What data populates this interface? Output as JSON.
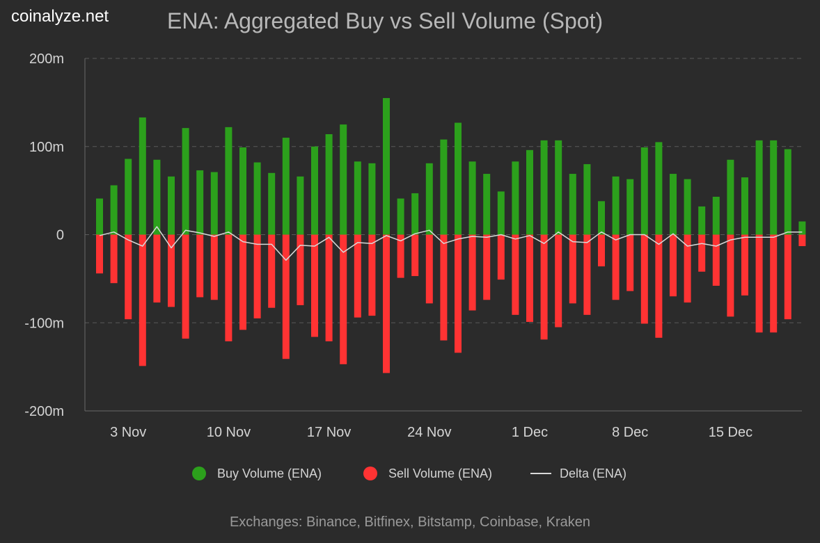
{
  "brand": "coinalyze.net",
  "title": "ENA: Aggregated Buy vs Sell Volume (Spot)",
  "footer": "Exchanges: Binance, Bitfinex, Bitstamp, Coinbase, Kraken",
  "colors": {
    "background": "#2b2b2b",
    "buy": "#2ca01c",
    "sell": "#ff3333",
    "delta": "#d9d9d9",
    "grid": "#5a5a5a",
    "axis_text": "#d4d4d4"
  },
  "legend": {
    "buy_label": "Buy Volume (ENA)",
    "sell_label": "Sell Volume (ENA)",
    "delta_label": "Delta (ENA)"
  },
  "chart_data": {
    "type": "bar",
    "title": "ENA: Aggregated Buy vs Sell Volume (Spot)",
    "unit": "m",
    "ylim": [
      -200,
      200
    ],
    "yticks": [
      {
        "value": 200,
        "label": "200m"
      },
      {
        "value": 100,
        "label": "100m"
      },
      {
        "value": 0,
        "label": "0"
      },
      {
        "value": -100,
        "label": "-100m"
      },
      {
        "value": -200,
        "label": "-200m"
      }
    ],
    "grid": true,
    "legend_position": "bottom",
    "x_ticks": [
      {
        "day_index": 2,
        "label": "3 Nov"
      },
      {
        "day_index": 9,
        "label": "10 Nov"
      },
      {
        "day_index": 16,
        "label": "17 Nov"
      },
      {
        "day_index": 23,
        "label": "24 Nov"
      },
      {
        "day_index": 30,
        "label": "1 Dec"
      },
      {
        "day_index": 37,
        "label": "8 Dec"
      },
      {
        "day_index": 44,
        "label": "15 Dec"
      }
    ],
    "series": [
      {
        "name": "Buy Volume (ENA)",
        "values": [
          41,
          56,
          86,
          133,
          85,
          66,
          121,
          73,
          71,
          122,
          99,
          82,
          70,
          110,
          66,
          100,
          114,
          125,
          83,
          81,
          155,
          41,
          47,
          81,
          108,
          127,
          83,
          69,
          49,
          83,
          96,
          107,
          107,
          69,
          80,
          38,
          66,
          63,
          99,
          105,
          69,
          63,
          32,
          43,
          85,
          65,
          107,
          107,
          97,
          15
        ]
      },
      {
        "name": "Sell Volume (ENA)",
        "values": [
          -44,
          -55,
          -96,
          -149,
          -77,
          -82,
          -118,
          -71,
          -74,
          -121,
          -108,
          -95,
          -83,
          -141,
          -80,
          -116,
          -121,
          -147,
          -94,
          -92,
          -157,
          -49,
          -47,
          -78,
          -120,
          -134,
          -86,
          -74,
          -51,
          -91,
          -99,
          -119,
          -105,
          -78,
          -91,
          -36,
          -74,
          -64,
          -101,
          -117,
          -70,
          -77,
          -42,
          -58,
          -93,
          -69,
          -111,
          -111,
          -96,
          -13
        ]
      },
      {
        "name": "Delta (ENA)",
        "values": [
          -1,
          3,
          -6,
          -13,
          9,
          -15,
          5,
          2,
          -2,
          3,
          -8,
          -11,
          -11,
          -29,
          -12,
          -13,
          -3,
          -20,
          -9,
          -10,
          -1,
          -7,
          1,
          5,
          -10,
          -5,
          -2,
          -3,
          0,
          -5,
          -1,
          -10,
          3,
          -8,
          -9,
          3,
          -6,
          0,
          0,
          -11,
          1,
          -13,
          -10,
          -13,
          -6,
          -3,
          -3,
          -3,
          3,
          3
        ]
      }
    ]
  }
}
